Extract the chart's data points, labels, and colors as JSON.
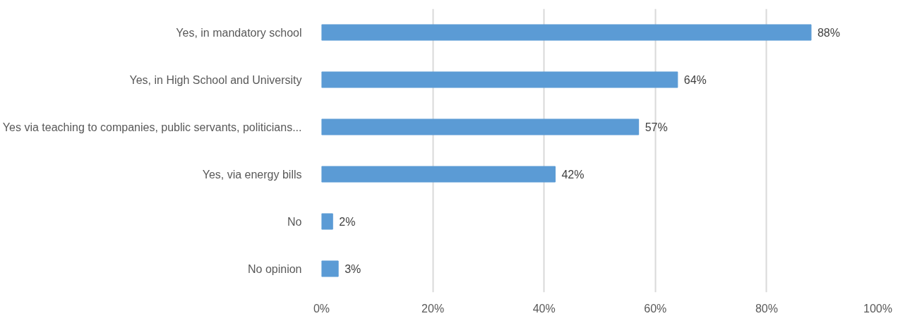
{
  "chart_data": {
    "type": "bar",
    "orientation": "horizontal",
    "categories": [
      "Yes, in mandatory school",
      "Yes, in High School and University",
      "Yes via teaching to companies, public servants, politicians...",
      "Yes, via energy bills",
      "No",
      "No opinion"
    ],
    "values": [
      88,
      64,
      57,
      42,
      2,
      3
    ],
    "value_labels": [
      "88%",
      "64%",
      "57%",
      "42%",
      "2%",
      "3%"
    ],
    "color": "#5b9bd5",
    "xlim": [
      0,
      100
    ],
    "xticks": [
      {
        "value": 0,
        "label": "0%"
      },
      {
        "value": 20,
        "label": "20%"
      },
      {
        "value": 40,
        "label": "40%"
      },
      {
        "value": 60,
        "label": "60%"
      },
      {
        "value": 80,
        "label": "80%"
      },
      {
        "value": 100,
        "label": "100%"
      }
    ],
    "grid": "x"
  }
}
